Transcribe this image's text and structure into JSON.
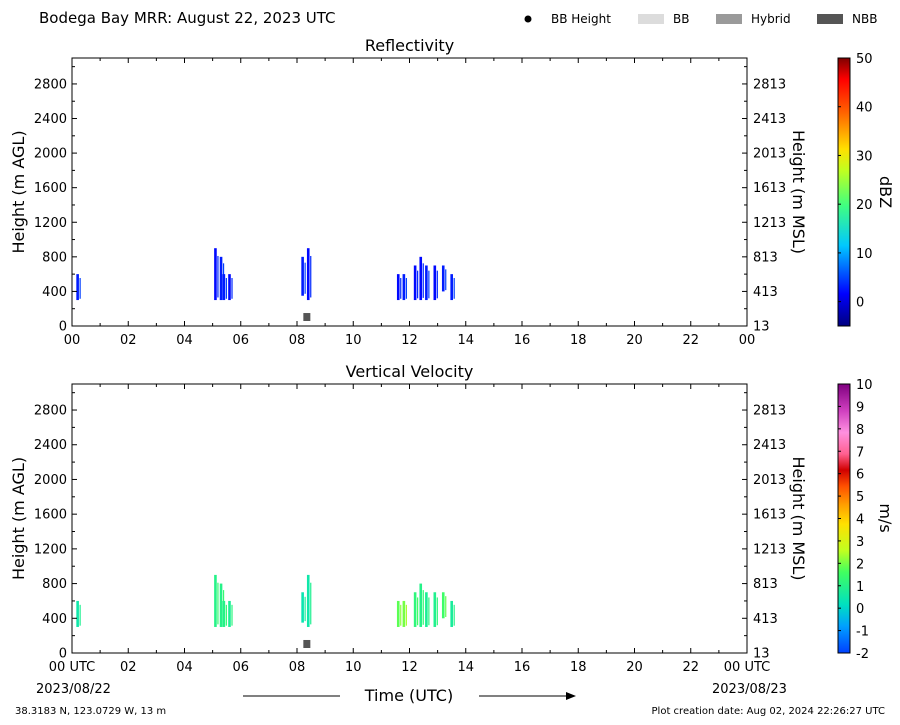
{
  "header": {
    "title": "Bodega Bay MRR:  August 22, 2023 UTC",
    "legend": [
      {
        "label": "BB Height",
        "kind": "dot",
        "color": "#000000"
      },
      {
        "label": "BB",
        "kind": "box",
        "color": "#dcdcdc"
      },
      {
        "label": "Hybrid",
        "kind": "box",
        "color": "#9a9a9a"
      },
      {
        "label": "NBB",
        "kind": "box",
        "color": "#555555"
      }
    ]
  },
  "footer": {
    "location": "38.3183 N, 123.0729 W, 13 m",
    "created": "Plot creation date: Aug 02, 2024 22:26:27 UTC",
    "start_date": "2023/08/22",
    "end_date": "2023/08/23",
    "xlabel": "Time (UTC)"
  },
  "chart_data": [
    {
      "type": "heatmap",
      "title": "Reflectivity",
      "ylabel": "Height (m AGL)",
      "ylabel_right": "Height (m MSL)",
      "x_ticks": [
        "00",
        "02",
        "04",
        "06",
        "08",
        "10",
        "12",
        "14",
        "16",
        "18",
        "20",
        "22",
        "00"
      ],
      "y_ticks_left": [
        "0",
        "400",
        "800",
        "1200",
        "1600",
        "2000",
        "2400",
        "2800"
      ],
      "y_ticks_right": [
        "13",
        "413",
        "813",
        "1213",
        "1613",
        "2013",
        "2413",
        "2813"
      ],
      "y_tick_values": [
        0,
        400,
        800,
        1200,
        1600,
        2000,
        2400,
        2800
      ],
      "xlim": [
        0,
        24
      ],
      "ylim": [
        0,
        3100
      ],
      "colorbar": {
        "label": "dBZ",
        "ticks": [
          "0",
          "10",
          "20",
          "30",
          "40",
          "50"
        ],
        "tick_values": [
          0,
          10,
          20,
          30,
          40,
          50
        ],
        "range": [
          -5,
          50
        ]
      },
      "echo_columns": [
        {
          "t": 0.2,
          "bottom": 300,
          "top": 600,
          "value": 3
        },
        {
          "t": 5.1,
          "bottom": 300,
          "top": 900,
          "value": 2
        },
        {
          "t": 5.3,
          "bottom": 300,
          "top": 800,
          "value": 3
        },
        {
          "t": 5.4,
          "bottom": 300,
          "top": 600,
          "value": 3
        },
        {
          "t": 5.6,
          "bottom": 300,
          "top": 600,
          "value": 2
        },
        {
          "t": 8.2,
          "bottom": 350,
          "top": 800,
          "value": 3
        },
        {
          "t": 8.4,
          "bottom": 300,
          "top": 900,
          "value": 2
        },
        {
          "t": 11.6,
          "bottom": 300,
          "top": 600,
          "value": 2
        },
        {
          "t": 11.8,
          "bottom": 300,
          "top": 600,
          "value": 3
        },
        {
          "t": 12.2,
          "bottom": 300,
          "top": 700,
          "value": 2
        },
        {
          "t": 12.4,
          "bottom": 300,
          "top": 800,
          "value": 2
        },
        {
          "t": 12.6,
          "bottom": 300,
          "top": 700,
          "value": 3
        },
        {
          "t": 12.9,
          "bottom": 300,
          "top": 700,
          "value": 2
        },
        {
          "t": 13.2,
          "bottom": 400,
          "top": 700,
          "value": 3
        },
        {
          "t": 13.5,
          "bottom": 300,
          "top": 600,
          "value": 3
        }
      ],
      "nbb_marker": {
        "t": 8.35,
        "height": 150
      }
    },
    {
      "type": "heatmap",
      "title": "Vertical Velocity",
      "ylabel": "Height (m AGL)",
      "ylabel_right": "Height (m MSL)",
      "x_ticks": [
        "00 UTC",
        "02",
        "04",
        "06",
        "08",
        "10",
        "12",
        "14",
        "16",
        "18",
        "20",
        "22",
        "00 UTC"
      ],
      "y_ticks_left": [
        "0",
        "400",
        "800",
        "1200",
        "1600",
        "2000",
        "2400",
        "2800"
      ],
      "y_ticks_right": [
        "13",
        "413",
        "813",
        "1213",
        "1613",
        "2013",
        "2413",
        "2813"
      ],
      "y_tick_values": [
        0,
        400,
        800,
        1200,
        1600,
        2000,
        2400,
        2800
      ],
      "xlim": [
        0,
        24
      ],
      "ylim": [
        0,
        3100
      ],
      "colorbar": {
        "label": "m/s",
        "ticks": [
          "-2",
          "-1",
          "0",
          "1",
          "2",
          "3",
          "4",
          "5",
          "6",
          "7",
          "8",
          "9",
          "10"
        ],
        "tick_values": [
          -2,
          -1,
          0,
          1,
          2,
          3,
          4,
          5,
          6,
          7,
          8,
          9,
          10
        ],
        "range": [
          -2,
          10
        ]
      },
      "echo_columns": [
        {
          "t": 0.2,
          "bottom": 300,
          "top": 600,
          "value": 0.5
        },
        {
          "t": 5.1,
          "bottom": 300,
          "top": 900,
          "value": 1
        },
        {
          "t": 5.3,
          "bottom": 300,
          "top": 800,
          "value": 1
        },
        {
          "t": 5.4,
          "bottom": 300,
          "top": 600,
          "value": 1
        },
        {
          "t": 5.6,
          "bottom": 300,
          "top": 600,
          "value": 0.8
        },
        {
          "t": 8.2,
          "bottom": 350,
          "top": 700,
          "value": 0.4
        },
        {
          "t": 8.4,
          "bottom": 300,
          "top": 900,
          "value": 0.5
        },
        {
          "t": 11.6,
          "bottom": 300,
          "top": 600,
          "value": 1.8
        },
        {
          "t": 11.8,
          "bottom": 300,
          "top": 600,
          "value": 2
        },
        {
          "t": 12.2,
          "bottom": 300,
          "top": 700,
          "value": 1.2
        },
        {
          "t": 12.4,
          "bottom": 300,
          "top": 800,
          "value": 1
        },
        {
          "t": 12.6,
          "bottom": 300,
          "top": 700,
          "value": 0.8
        },
        {
          "t": 12.9,
          "bottom": 300,
          "top": 700,
          "value": 0.9
        },
        {
          "t": 13.2,
          "bottom": 400,
          "top": 700,
          "value": 1.5
        },
        {
          "t": 13.5,
          "bottom": 300,
          "top": 600,
          "value": 0.7
        }
      ],
      "nbb_marker": {
        "t": 8.35,
        "height": 150
      }
    }
  ]
}
